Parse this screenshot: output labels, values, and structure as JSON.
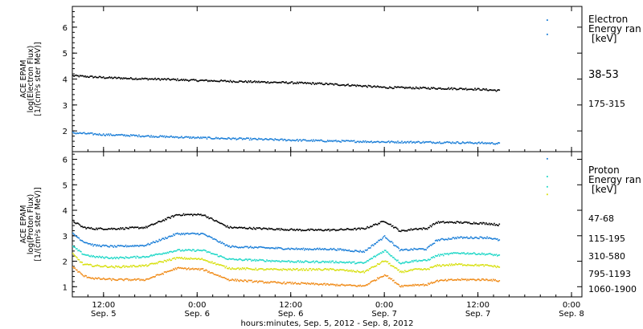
{
  "chart_data": [
    {
      "type": "scatter",
      "panel": "electron",
      "ylabel_lines": [
        "ACE EPAM",
        "log(Electron Flux)",
        "[1/(cm²s ster MeV)]"
      ],
      "ylim": [
        1.2,
        6.8
      ],
      "yticks": [
        2,
        3,
        4,
        5,
        6
      ],
      "legend_title": [
        "Electron",
        "Energy ran",
        "[keV]"
      ],
      "series": [
        {
          "name": "38-53",
          "color": "#000000",
          "x": [
            0,
            6,
            12,
            18,
            24,
            30,
            36,
            42,
            48,
            54,
            60,
            66,
            72,
            78,
            82
          ],
          "y": [
            4.15,
            4.08,
            4.04,
            4.01,
            3.97,
            3.94,
            3.91,
            3.88,
            3.84,
            3.78,
            3.7,
            3.68,
            3.66,
            3.63,
            3.58
          ]
        },
        {
          "name": "175-315",
          "color": "#1c7fd8",
          "x": [
            0,
            6,
            12,
            18,
            24,
            30,
            36,
            42,
            48,
            54,
            60,
            66,
            72,
            78,
            82
          ],
          "y": [
            1.95,
            1.88,
            1.84,
            1.8,
            1.76,
            1.73,
            1.7,
            1.67,
            1.64,
            1.62,
            1.6,
            1.59,
            1.58,
            1.56,
            1.54
          ]
        }
      ]
    },
    {
      "type": "scatter",
      "panel": "proton",
      "ylabel_lines": [
        "ACE EPAM",
        "log(Proton Flux)",
        "[1/(cm²s ster MeV)]"
      ],
      "ylim": [
        0.6,
        6.3
      ],
      "yticks": [
        1,
        2,
        3,
        4,
        5,
        6
      ],
      "legend_title": [
        "Proton",
        "Energy ran",
        "[keV]"
      ],
      "series": [
        {
          "name": "47-68",
          "color": "#000000",
          "x": [
            0,
            2,
            4,
            8,
            14,
            20,
            25,
            30,
            37,
            44,
            50,
            56,
            60,
            63,
            66,
            68,
            70,
            74,
            80,
            82
          ],
          "y": [
            3.6,
            3.35,
            3.3,
            3.3,
            3.35,
            3.85,
            3.85,
            3.35,
            3.3,
            3.25,
            3.25,
            3.3,
            3.6,
            3.2,
            3.3,
            3.3,
            3.55,
            3.55,
            3.5,
            3.45
          ]
        },
        {
          "name": "115-195",
          "color": "#1c7fd8",
          "x": [
            0,
            2,
            4,
            8,
            14,
            20,
            25,
            30,
            37,
            44,
            50,
            56,
            60,
            63,
            66,
            68,
            70,
            74,
            80,
            82
          ],
          "y": [
            3.1,
            2.8,
            2.65,
            2.6,
            2.65,
            3.1,
            3.1,
            2.6,
            2.55,
            2.5,
            2.5,
            2.4,
            3.0,
            2.45,
            2.5,
            2.5,
            2.85,
            2.95,
            2.95,
            2.85
          ]
        },
        {
          "name": "310-580",
          "color": "#22d8c8",
          "x": [
            0,
            2,
            4,
            8,
            14,
            20,
            25,
            30,
            37,
            44,
            50,
            56,
            60,
            63,
            66,
            68,
            70,
            74,
            80,
            82
          ],
          "y": [
            2.6,
            2.3,
            2.2,
            2.15,
            2.2,
            2.45,
            2.45,
            2.1,
            2.05,
            2.0,
            2.0,
            1.95,
            2.45,
            1.95,
            2.05,
            2.05,
            2.25,
            2.35,
            2.3,
            2.25
          ]
        },
        {
          "name": "795-1193",
          "color": "#d8e010",
          "x": [
            0,
            2,
            4,
            8,
            14,
            20,
            25,
            30,
            37,
            44,
            50,
            56,
            60,
            63,
            66,
            68,
            70,
            74,
            80,
            82
          ],
          "y": [
            2.3,
            1.9,
            1.85,
            1.8,
            1.85,
            2.15,
            2.1,
            1.75,
            1.7,
            1.7,
            1.7,
            1.6,
            2.05,
            1.6,
            1.7,
            1.7,
            1.85,
            1.9,
            1.85,
            1.8
          ]
        },
        {
          "name": "1060-1900",
          "color": "#f08c1a",
          "x": [
            0,
            2,
            4,
            8,
            14,
            20,
            25,
            30,
            37,
            44,
            50,
            56,
            60,
            63,
            66,
            68,
            70,
            74,
            80,
            82
          ],
          "y": [
            1.8,
            1.45,
            1.35,
            1.3,
            1.3,
            1.75,
            1.7,
            1.3,
            1.2,
            1.15,
            1.1,
            1.05,
            1.5,
            1.05,
            1.1,
            1.1,
            1.25,
            1.3,
            1.3,
            1.25
          ]
        }
      ]
    }
  ],
  "time_axis": {
    "xlim": [
      0,
      98
    ],
    "tick_hours": [
      6,
      24,
      42,
      60,
      78,
      96
    ],
    "tick_labels": [
      [
        "12:00",
        "Sep. 5"
      ],
      [
        "0:00",
        "Sep. 6"
      ],
      [
        "12:00",
        "Sep. 6"
      ],
      [
        "0:00",
        "Sep. 7"
      ],
      [
        "12:00",
        "Sep. 7"
      ],
      [
        "0:00",
        "Sep. 8"
      ]
    ],
    "xlabel": "hours:minutes, Sep.  5, 2012 - Sep.  8, 2012"
  },
  "outliers": [
    {
      "panel": 0,
      "x": 91.2,
      "y": 6.3,
      "color": "#1c7fd8"
    },
    {
      "panel": 0,
      "x": 91.2,
      "y": 5.75,
      "color": "#1c7fd8"
    },
    {
      "panel": 1,
      "x": 91.2,
      "y": 6.05,
      "color": "#1c7fd8"
    },
    {
      "panel": 1,
      "x": 91.2,
      "y": 5.35,
      "color": "#22d8c8"
    },
    {
      "panel": 1,
      "x": 91.2,
      "y": 4.65,
      "color": "#d8e010"
    },
    {
      "panel": 1,
      "x": 91.2,
      "y": 4.95,
      "color": "#22d8c8"
    }
  ]
}
